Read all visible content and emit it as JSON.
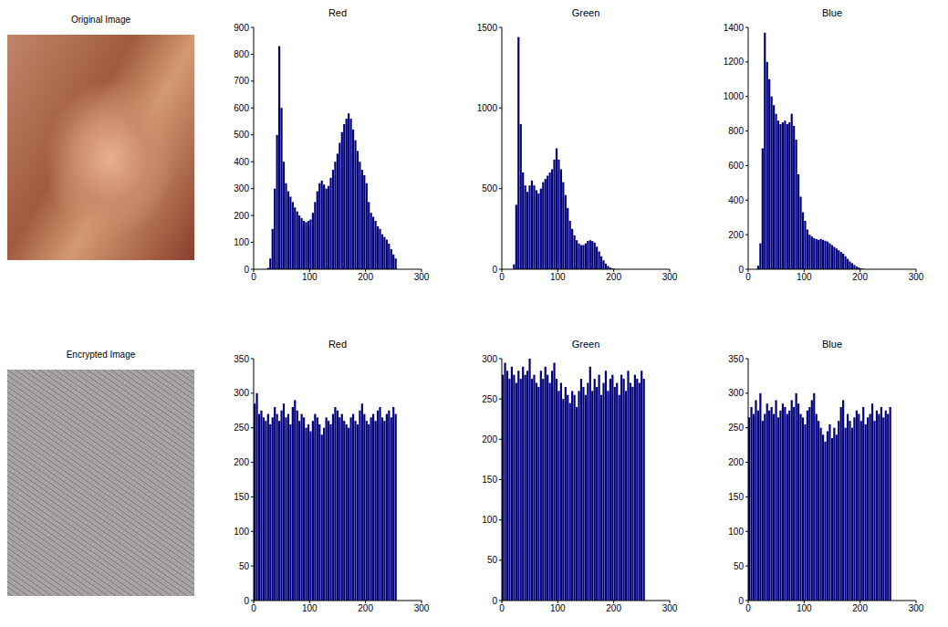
{
  "images": [
    {
      "title": "Original Image"
    },
    {
      "title": "Encrypted Image"
    }
  ],
  "chart_data": [
    {
      "type": "histogram",
      "title": "Red",
      "color": "#00007f",
      "grid": false,
      "xlim": [
        0,
        300
      ],
      "xticks": [
        0,
        100,
        200,
        300
      ],
      "ylim": [
        0,
        900
      ],
      "yticks": [
        0,
        100,
        200,
        300,
        400,
        500,
        600,
        700,
        800,
        900
      ],
      "bins": [
        0,
        4,
        8,
        12,
        16,
        20,
        24,
        28,
        32,
        36,
        40,
        44,
        48,
        52,
        56,
        60,
        64,
        68,
        72,
        76,
        80,
        84,
        88,
        92,
        96,
        100,
        104,
        108,
        112,
        116,
        120,
        124,
        128,
        132,
        136,
        140,
        144,
        148,
        152,
        156,
        160,
        164,
        168,
        172,
        176,
        180,
        184,
        188,
        192,
        196,
        200,
        204,
        208,
        212,
        216,
        220,
        224,
        228,
        232,
        236,
        240,
        244,
        248,
        252,
        256
      ],
      "values": [
        0,
        0,
        0,
        0,
        0,
        0,
        5,
        40,
        150,
        300,
        500,
        830,
        600,
        400,
        320,
        290,
        270,
        250,
        230,
        215,
        200,
        190,
        180,
        175,
        180,
        185,
        210,
        250,
        290,
        320,
        330,
        315,
        300,
        310,
        340,
        370,
        400,
        430,
        470,
        510,
        540,
        560,
        580,
        560,
        520,
        480,
        440,
        400,
        370,
        350,
        320,
        250,
        210,
        195,
        180,
        160,
        150,
        130,
        120,
        110,
        95,
        75,
        55,
        40
      ]
    },
    {
      "type": "histogram",
      "title": "Green",
      "color": "#00007f",
      "grid": false,
      "xlim": [
        0,
        300
      ],
      "xticks": [
        0,
        100,
        200,
        300
      ],
      "ylim": [
        0,
        1500
      ],
      "yticks": [
        0,
        500,
        1000,
        1500
      ],
      "bins": [
        0,
        4,
        8,
        12,
        16,
        20,
        24,
        28,
        32,
        36,
        40,
        44,
        48,
        52,
        56,
        60,
        64,
        68,
        72,
        76,
        80,
        84,
        88,
        92,
        96,
        100,
        104,
        108,
        112,
        116,
        120,
        124,
        128,
        132,
        136,
        140,
        144,
        148,
        152,
        156,
        160,
        164,
        168,
        172,
        176,
        180,
        184,
        188,
        192,
        196,
        200,
        204,
        208,
        212,
        216,
        220,
        224,
        228,
        232,
        236,
        240,
        244,
        248,
        252,
        256
      ],
      "values": [
        0,
        0,
        0,
        0,
        0,
        30,
        400,
        1440,
        900,
        600,
        520,
        480,
        520,
        550,
        520,
        490,
        470,
        500,
        540,
        560,
        580,
        600,
        620,
        680,
        750,
        680,
        620,
        540,
        460,
        380,
        300,
        250,
        210,
        180,
        160,
        150,
        150,
        160,
        175,
        180,
        175,
        165,
        140,
        110,
        80,
        55,
        35,
        20,
        10,
        5,
        2,
        0,
        0,
        0,
        0,
        0,
        0,
        0,
        0,
        0,
        0,
        0,
        0,
        0
      ]
    },
    {
      "type": "histogram",
      "title": "Blue",
      "color": "#00007f",
      "grid": false,
      "xlim": [
        0,
        300
      ],
      "xticks": [
        0,
        100,
        200,
        300
      ],
      "ylim": [
        0,
        1400
      ],
      "yticks": [
        0,
        200,
        400,
        600,
        800,
        1000,
        1200,
        1400
      ],
      "bins": [
        0,
        4,
        8,
        12,
        16,
        20,
        24,
        28,
        32,
        36,
        40,
        44,
        48,
        52,
        56,
        60,
        64,
        68,
        72,
        76,
        80,
        84,
        88,
        92,
        96,
        100,
        104,
        108,
        112,
        116,
        120,
        124,
        128,
        132,
        136,
        140,
        144,
        148,
        152,
        156,
        160,
        164,
        168,
        172,
        176,
        180,
        184,
        188,
        192,
        196,
        200,
        204,
        208,
        212,
        216,
        220,
        224,
        228,
        232,
        236,
        240,
        244,
        248,
        252,
        256
      ],
      "values": [
        0,
        0,
        0,
        0,
        20,
        150,
        700,
        1370,
        1200,
        1100,
        1000,
        950,
        900,
        860,
        840,
        850,
        860,
        840,
        850,
        900,
        830,
        750,
        550,
        420,
        330,
        280,
        230,
        200,
        190,
        180,
        175,
        170,
        175,
        170,
        165,
        160,
        150,
        140,
        130,
        120,
        110,
        100,
        90,
        75,
        60,
        45,
        35,
        25,
        15,
        10,
        5,
        2,
        0,
        0,
        0,
        0,
        0,
        0,
        0,
        0,
        0,
        0,
        0,
        0
      ]
    },
    {
      "type": "histogram",
      "title": "Red",
      "color": "#00007f",
      "grid": false,
      "xlim": [
        0,
        300
      ],
      "xticks": [
        0,
        100,
        200,
        300
      ],
      "ylim": [
        0,
        350
      ],
      "yticks": [
        0,
        50,
        100,
        150,
        200,
        250,
        300,
        350
      ],
      "bins": [
        0,
        4,
        8,
        12,
        16,
        20,
        24,
        28,
        32,
        36,
        40,
        44,
        48,
        52,
        56,
        60,
        64,
        68,
        72,
        76,
        80,
        84,
        88,
        92,
        96,
        100,
        104,
        108,
        112,
        116,
        120,
        124,
        128,
        132,
        136,
        140,
        144,
        148,
        152,
        156,
        160,
        164,
        168,
        172,
        176,
        180,
        184,
        188,
        192,
        196,
        200,
        204,
        208,
        212,
        216,
        220,
        224,
        228,
        232,
        236,
        240,
        244,
        248,
        252,
        256
      ],
      "values": [
        285,
        300,
        270,
        275,
        265,
        260,
        270,
        255,
        265,
        280,
        270,
        260,
        275,
        285,
        265,
        270,
        255,
        280,
        290,
        275,
        260,
        270,
        265,
        250,
        255,
        245,
        260,
        270,
        265,
        255,
        240,
        250,
        265,
        260,
        255,
        270,
        280,
        275,
        265,
        270,
        260,
        255,
        250,
        265,
        270,
        260,
        255,
        275,
        285,
        270,
        260,
        255,
        265,
        270,
        260,
        275,
        280,
        265,
        260,
        270,
        275,
        265,
        280,
        270
      ]
    },
    {
      "type": "histogram",
      "title": "Green",
      "color": "#00007f",
      "grid": false,
      "xlim": [
        0,
        300
      ],
      "xticks": [
        0,
        100,
        200,
        300
      ],
      "ylim": [
        0,
        300
      ],
      "yticks": [
        0,
        50,
        100,
        150,
        200,
        250,
        300
      ],
      "bins": [
        0,
        4,
        8,
        12,
        16,
        20,
        24,
        28,
        32,
        36,
        40,
        44,
        48,
        52,
        56,
        60,
        64,
        68,
        72,
        76,
        80,
        84,
        88,
        92,
        96,
        100,
        104,
        108,
        112,
        116,
        120,
        124,
        128,
        132,
        136,
        140,
        144,
        148,
        152,
        156,
        160,
        164,
        168,
        172,
        176,
        180,
        184,
        188,
        192,
        196,
        200,
        204,
        208,
        212,
        216,
        220,
        224,
        228,
        232,
        236,
        240,
        244,
        248,
        252,
        256
      ],
      "values": [
        280,
        295,
        285,
        275,
        290,
        280,
        270,
        285,
        275,
        290,
        280,
        285,
        300,
        275,
        280,
        270,
        265,
        285,
        275,
        290,
        280,
        270,
        285,
        295,
        275,
        260,
        270,
        250,
        265,
        255,
        245,
        260,
        255,
        240,
        260,
        275,
        265,
        255,
        270,
        290,
        260,
        275,
        265,
        280,
        255,
        270,
        285,
        260,
        275,
        280,
        265,
        270,
        255,
        280,
        275,
        260,
        285,
        270,
        265,
        280,
        275,
        270,
        285,
        275
      ]
    },
    {
      "type": "histogram",
      "title": "Blue",
      "color": "#00007f",
      "grid": false,
      "xlim": [
        0,
        300
      ],
      "xticks": [
        0,
        100,
        200,
        300
      ],
      "ylim": [
        0,
        350
      ],
      "yticks": [
        0,
        50,
        100,
        150,
        200,
        250,
        300,
        350
      ],
      "bins": [
        0,
        4,
        8,
        12,
        16,
        20,
        24,
        28,
        32,
        36,
        40,
        44,
        48,
        52,
        56,
        60,
        64,
        68,
        72,
        76,
        80,
        84,
        88,
        92,
        96,
        100,
        104,
        108,
        112,
        116,
        120,
        124,
        128,
        132,
        136,
        140,
        144,
        148,
        152,
        156,
        160,
        164,
        168,
        172,
        176,
        180,
        184,
        188,
        192,
        196,
        200,
        204,
        208,
        212,
        216,
        220,
        224,
        228,
        232,
        236,
        240,
        244,
        248,
        252,
        256
      ],
      "values": [
        265,
        280,
        270,
        290,
        275,
        300,
        260,
        270,
        285,
        275,
        280,
        270,
        290,
        265,
        275,
        285,
        280,
        270,
        275,
        290,
        280,
        300,
        285,
        270,
        265,
        255,
        275,
        280,
        290,
        300,
        270,
        260,
        250,
        240,
        230,
        245,
        255,
        235,
        250,
        240,
        260,
        280,
        290,
        250,
        270,
        260,
        250,
        265,
        275,
        270,
        260,
        280,
        255,
        265,
        270,
        285,
        260,
        275,
        270,
        280,
        265,
        275,
        270,
        280
      ]
    }
  ]
}
